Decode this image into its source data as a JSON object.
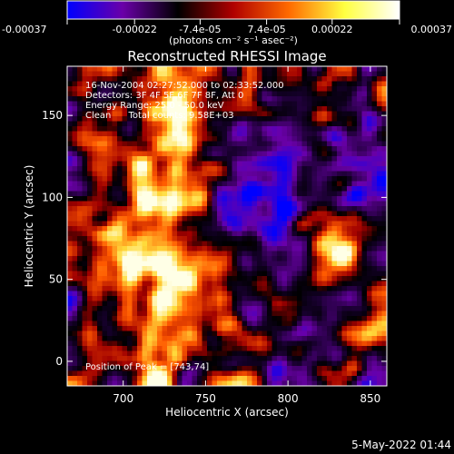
{
  "colorbar": {
    "ticks": [
      "-0.00037",
      "-0.00022",
      "-7.4e-05",
      "7.4e-05",
      "0.00022",
      "0.00037"
    ],
    "unit_label": "(photons cm⁻² s⁻¹ asec⁻²)",
    "range": [
      -0.00037,
      0.00037
    ],
    "colors": [
      "#0000ff",
      "#6a00a8",
      "#000000",
      "#b00000",
      "#ff6a00",
      "#ffff40",
      "#ffffff"
    ]
  },
  "chart_data": {
    "type": "heatmap",
    "title": "Reconstructed RHESSI Image",
    "xlabel": "Heliocentric X (arcsec)",
    "ylabel": "Heliocentric Y (arcsec)",
    "xlim": [
      666,
      860
    ],
    "ylim": [
      -15,
      180
    ],
    "xticks": [
      700,
      750,
      800,
      850
    ],
    "yticks": [
      0,
      50,
      100,
      150
    ],
    "peak": [
      743,
      74
    ],
    "annotations": {
      "time_range": "16-Nov-2004 02:27:52.000 to 02:33:52.000",
      "detectors": "Detectors: 3F 4F 5F 6F 7F 8F, Att 0",
      "energy": "Energy Range: 25.0 - 50.0 keV",
      "clean": "Clean      Total counts: 9.58E+03",
      "peak_position": "Position of Peak = [743,74]"
    }
  },
  "footer": {
    "date": "5-May-2022 01:44"
  }
}
